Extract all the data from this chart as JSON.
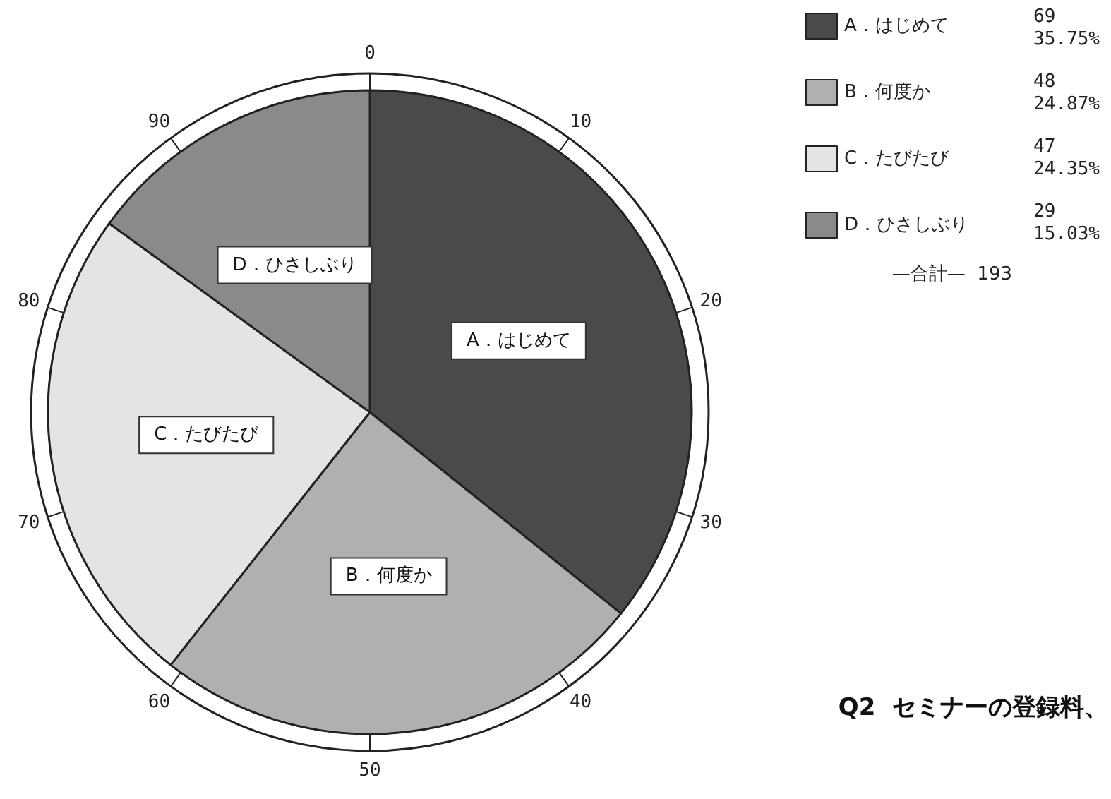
{
  "chart_data": {
    "type": "pie",
    "categories": [
      "A．はじめて",
      "B．何度か",
      "C．たびたび",
      "D．ひさしぶり"
    ],
    "values": [
      69,
      48,
      47,
      29
    ],
    "colors": [
      "#4a4a4a",
      "#b0b0b0",
      "#e4e4e4",
      "#8a8a8a"
    ],
    "value_labels": [
      "69\n35.75%",
      "48\n24.87%",
      "47\n24.35%",
      "29\n15.03%"
    ],
    "legend": "top right",
    "annotations": [
      "—合計—  193",
      "Q2  セミナーの登録料、",
      "0",
      "10",
      "20",
      "30",
      "40",
      "50",
      "60",
      "70",
      "80",
      "90"
    ]
  }
}
